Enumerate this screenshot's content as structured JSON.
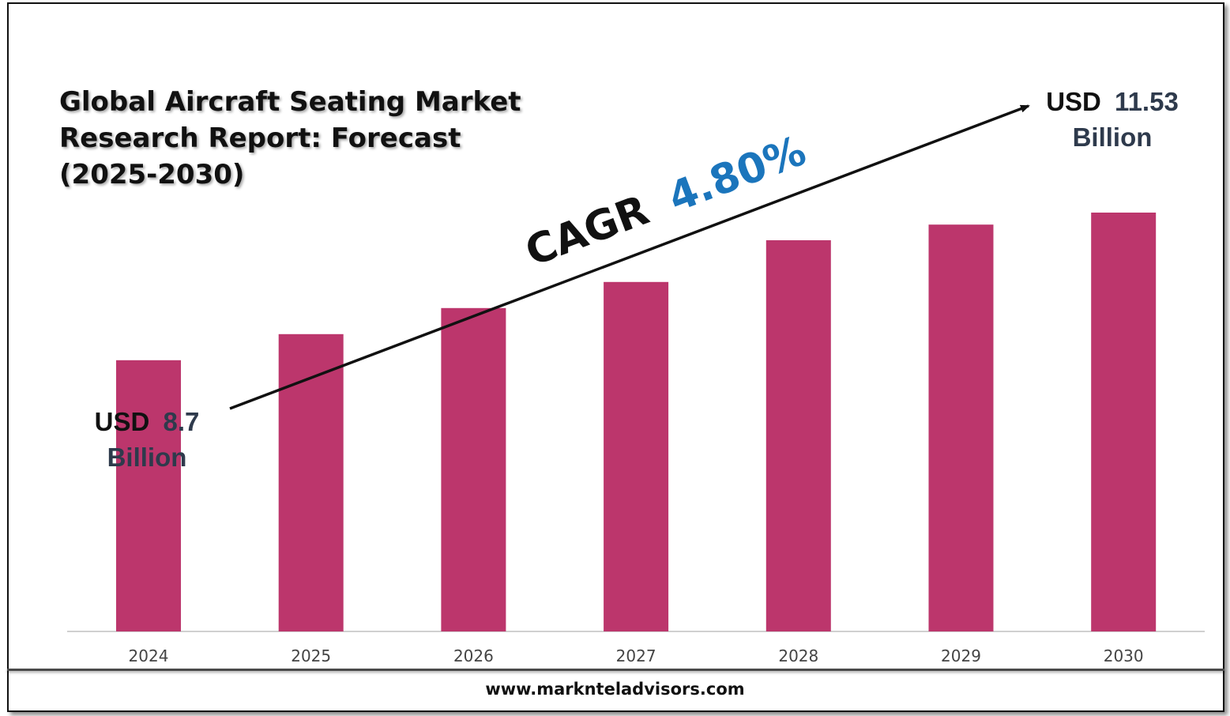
{
  "title": "Global Aircraft Seating Market\nResearch Report: Forecast\n(2025-2030)",
  "website": "www.marknteladvisors.com",
  "colors": {
    "bar": "#bc366c",
    "cagr_value": "#1b75bc",
    "callout_value": "#2e3a4c",
    "callout_label": "#111111"
  },
  "annotations": {
    "cagr_label": "CAGR",
    "cagr_value": "4.80%",
    "start": {
      "prefix": "USD",
      "value": "8.7",
      "unit": "Billion"
    },
    "end": {
      "prefix": "USD",
      "value": "11.53",
      "unit": "Billion"
    }
  },
  "chart_data": {
    "type": "bar",
    "categories": [
      "2024",
      "2025",
      "2026",
      "2027",
      "2028",
      "2029",
      "2030"
    ],
    "values": [
      8.7,
      9.2,
      9.7,
      10.2,
      11.0,
      11.3,
      11.53
    ],
    "ylim": [
      3.5,
      12.5
    ],
    "grid": false,
    "legend": "none",
    "title": "Global Aircraft Seating Market Research Report: Forecast (2025-2030)",
    "xlabel": "",
    "ylabel": ""
  }
}
